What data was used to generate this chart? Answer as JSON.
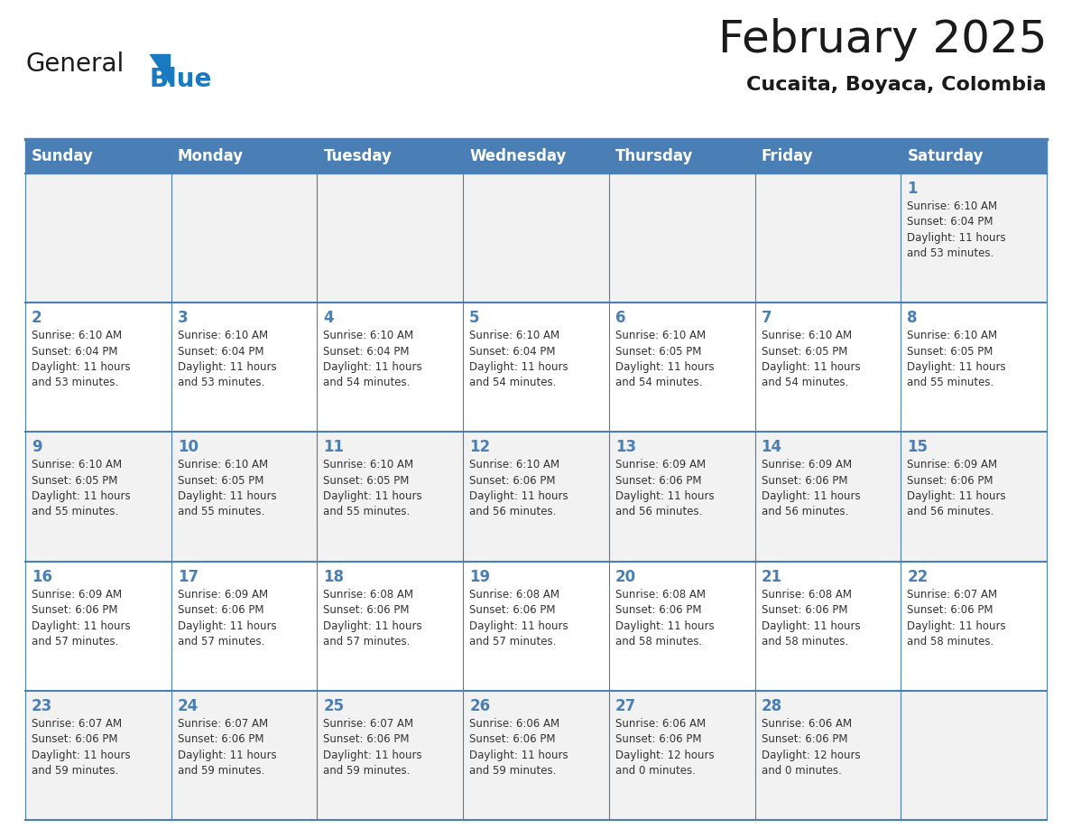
{
  "title": "February 2025",
  "subtitle": "Cucaita, Boyaca, Colombia",
  "header_bg_color": "#4a7fb5",
  "header_text_color": "#ffffff",
  "day_names": [
    "Sunday",
    "Monday",
    "Tuesday",
    "Wednesday",
    "Thursday",
    "Friday",
    "Saturday"
  ],
  "row_colors": [
    "#f2f2f2",
    "#ffffff"
  ],
  "border_color": "#4a7fb5",
  "number_color": "#4a7fb5",
  "text_color": "#333333",
  "logo_general_color": "#1a1a1a",
  "logo_blue_color": "#1a7abf",
  "calendar": [
    [
      null,
      null,
      null,
      null,
      null,
      null,
      {
        "day": 1,
        "sunrise": "6:10 AM",
        "sunset": "6:04 PM",
        "daylight": "11 hours\nand 53 minutes."
      }
    ],
    [
      {
        "day": 2,
        "sunrise": "6:10 AM",
        "sunset": "6:04 PM",
        "daylight": "11 hours\nand 53 minutes."
      },
      {
        "day": 3,
        "sunrise": "6:10 AM",
        "sunset": "6:04 PM",
        "daylight": "11 hours\nand 53 minutes."
      },
      {
        "day": 4,
        "sunrise": "6:10 AM",
        "sunset": "6:04 PM",
        "daylight": "11 hours\nand 54 minutes."
      },
      {
        "day": 5,
        "sunrise": "6:10 AM",
        "sunset": "6:04 PM",
        "daylight": "11 hours\nand 54 minutes."
      },
      {
        "day": 6,
        "sunrise": "6:10 AM",
        "sunset": "6:05 PM",
        "daylight": "11 hours\nand 54 minutes."
      },
      {
        "day": 7,
        "sunrise": "6:10 AM",
        "sunset": "6:05 PM",
        "daylight": "11 hours\nand 54 minutes."
      },
      {
        "day": 8,
        "sunrise": "6:10 AM",
        "sunset": "6:05 PM",
        "daylight": "11 hours\nand 55 minutes."
      }
    ],
    [
      {
        "day": 9,
        "sunrise": "6:10 AM",
        "sunset": "6:05 PM",
        "daylight": "11 hours\nand 55 minutes."
      },
      {
        "day": 10,
        "sunrise": "6:10 AM",
        "sunset": "6:05 PM",
        "daylight": "11 hours\nand 55 minutes."
      },
      {
        "day": 11,
        "sunrise": "6:10 AM",
        "sunset": "6:05 PM",
        "daylight": "11 hours\nand 55 minutes."
      },
      {
        "day": 12,
        "sunrise": "6:10 AM",
        "sunset": "6:06 PM",
        "daylight": "11 hours\nand 56 minutes."
      },
      {
        "day": 13,
        "sunrise": "6:09 AM",
        "sunset": "6:06 PM",
        "daylight": "11 hours\nand 56 minutes."
      },
      {
        "day": 14,
        "sunrise": "6:09 AM",
        "sunset": "6:06 PM",
        "daylight": "11 hours\nand 56 minutes."
      },
      {
        "day": 15,
        "sunrise": "6:09 AM",
        "sunset": "6:06 PM",
        "daylight": "11 hours\nand 56 minutes."
      }
    ],
    [
      {
        "day": 16,
        "sunrise": "6:09 AM",
        "sunset": "6:06 PM",
        "daylight": "11 hours\nand 57 minutes."
      },
      {
        "day": 17,
        "sunrise": "6:09 AM",
        "sunset": "6:06 PM",
        "daylight": "11 hours\nand 57 minutes."
      },
      {
        "day": 18,
        "sunrise": "6:08 AM",
        "sunset": "6:06 PM",
        "daylight": "11 hours\nand 57 minutes."
      },
      {
        "day": 19,
        "sunrise": "6:08 AM",
        "sunset": "6:06 PM",
        "daylight": "11 hours\nand 57 minutes."
      },
      {
        "day": 20,
        "sunrise": "6:08 AM",
        "sunset": "6:06 PM",
        "daylight": "11 hours\nand 58 minutes."
      },
      {
        "day": 21,
        "sunrise": "6:08 AM",
        "sunset": "6:06 PM",
        "daylight": "11 hours\nand 58 minutes."
      },
      {
        "day": 22,
        "sunrise": "6:07 AM",
        "sunset": "6:06 PM",
        "daylight": "11 hours\nand 58 minutes."
      }
    ],
    [
      {
        "day": 23,
        "sunrise": "6:07 AM",
        "sunset": "6:06 PM",
        "daylight": "11 hours\nand 59 minutes."
      },
      {
        "day": 24,
        "sunrise": "6:07 AM",
        "sunset": "6:06 PM",
        "daylight": "11 hours\nand 59 minutes."
      },
      {
        "day": 25,
        "sunrise": "6:07 AM",
        "sunset": "6:06 PM",
        "daylight": "11 hours\nand 59 minutes."
      },
      {
        "day": 26,
        "sunrise": "6:06 AM",
        "sunset": "6:06 PM",
        "daylight": "11 hours\nand 59 minutes."
      },
      {
        "day": 27,
        "sunrise": "6:06 AM",
        "sunset": "6:06 PM",
        "daylight": "12 hours\nand 0 minutes."
      },
      {
        "day": 28,
        "sunrise": "6:06 AM",
        "sunset": "6:06 PM",
        "daylight": "12 hours\nand 0 minutes."
      },
      null
    ]
  ]
}
